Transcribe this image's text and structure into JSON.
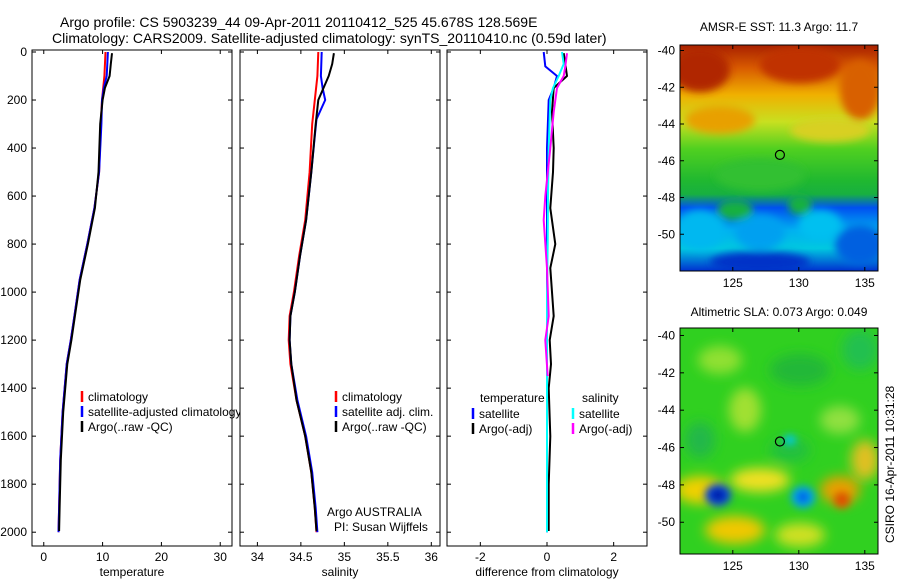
{
  "header": {
    "title_line1": "Argo profile: CS 5903239_44 09-Apr-2011 20110412_525 45.678S 128.569E",
    "title_line2": "Climatology: CARS2009. Satellite-adjusted climatology: synTS_20110410.nc (0.59d later)"
  },
  "credit": "CSIRO 16-Apr-2011 10:31:28",
  "chart_data": [
    {
      "type": "line",
      "id": "temperature",
      "xlabel": "temperature",
      "ylabel": "",
      "xlim": [
        -2,
        32
      ],
      "ylim": [
        2060,
        0
      ],
      "y_reversed": true,
      "xticks": [
        0,
        10,
        20,
        30
      ],
      "yticks": [
        0,
        200,
        400,
        600,
        800,
        1000,
        1200,
        1400,
        1600,
        1800,
        2000
      ],
      "legend": [
        "climatology",
        "satellite-adjusted climatology",
        "Argo(..raw -QC)"
      ],
      "series": [
        {
          "name": "climatology",
          "color": "#ff0000",
          "x": [
            10.5,
            10.3,
            10.1,
            9.9,
            9.7,
            9.4,
            8.6,
            7.4,
            6.1,
            5.2,
            4.6,
            3.9,
            3.2,
            2.8,
            2.6,
            2.5
          ],
          "y": [
            0,
            100,
            150,
            200,
            300,
            500,
            650,
            800,
            950,
            1100,
            1200,
            1300,
            1500,
            1700,
            1900,
            2000
          ]
        },
        {
          "name": "satellite-adjusted climatology",
          "color": "#0000ff",
          "x": [
            10.9,
            10.7,
            10.2,
            9.9,
            9.8,
            9.4,
            8.6,
            7.4,
            6.1,
            5.2,
            4.6,
            3.9,
            3.2,
            2.8,
            2.6,
            2.5
          ],
          "y": [
            0,
            100,
            150,
            200,
            300,
            500,
            650,
            800,
            950,
            1100,
            1200,
            1300,
            1500,
            1700,
            1900,
            2000
          ]
        },
        {
          "name": "Argo(..raw -QC)",
          "color": "#000000",
          "x": [
            11.6,
            11.4,
            11.2,
            10.4,
            10.0,
            9.6,
            9.3,
            8.7,
            7.5,
            6.2,
            5.3,
            4.7,
            4.0,
            3.3,
            2.9,
            2.7,
            2.6
          ],
          "y": [
            5,
            50,
            100,
            150,
            200,
            300,
            500,
            650,
            800,
            950,
            1100,
            1200,
            1300,
            1500,
            1700,
            1900,
            1995
          ]
        }
      ]
    },
    {
      "type": "line",
      "id": "salinity",
      "xlabel": "salinity",
      "ylabel": "",
      "xlim": [
        33.8,
        36.1
      ],
      "ylim": [
        2060,
        0
      ],
      "y_reversed": true,
      "xticks": [
        34,
        34.5,
        35,
        35.5,
        36
      ],
      "yticks": [
        0,
        200,
        400,
        600,
        800,
        1000,
        1200,
        1400,
        1600,
        1800,
        2000
      ],
      "legend": [
        "climatology",
        "satellite adj. clim.",
        "Argo(..raw -QC)"
      ],
      "annotation_line1": "Argo AUSTRALIA",
      "annotation_line2": "PI: Susan Wijffels",
      "series": [
        {
          "name": "climatology",
          "color": "#ff0000",
          "x": [
            34.7,
            34.69,
            34.66,
            34.63,
            34.6,
            34.55,
            34.48,
            34.42,
            34.37,
            34.36,
            34.38,
            34.45,
            34.55,
            34.62,
            34.66,
            34.68
          ],
          "y": [
            0,
            100,
            200,
            300,
            500,
            700,
            850,
            1000,
            1100,
            1200,
            1300,
            1450,
            1600,
            1750,
            1900,
            2000
          ]
        },
        {
          "name": "satellite adj. clim.",
          "color": "#0000ff",
          "x": [
            34.74,
            34.73,
            34.75,
            34.78,
            34.68,
            34.66,
            34.62,
            34.56,
            34.49,
            34.43,
            34.38,
            34.37,
            34.39,
            34.46,
            34.56,
            34.63,
            34.67,
            34.69
          ],
          "y": [
            0,
            100,
            150,
            200,
            280,
            350,
            500,
            700,
            850,
            1000,
            1100,
            1200,
            1300,
            1450,
            1600,
            1750,
            1900,
            2000
          ]
        },
        {
          "name": "Argo(..raw -QC)",
          "color": "#000000",
          "x": [
            34.88,
            34.86,
            34.82,
            34.7,
            34.67,
            34.62,
            34.56,
            34.49,
            34.43,
            34.38,
            34.37,
            34.39,
            34.45,
            34.55,
            34.62,
            34.66,
            34.68
          ],
          "y": [
            5,
            50,
            100,
            200,
            300,
            500,
            700,
            850,
            1000,
            1100,
            1200,
            1300,
            1450,
            1600,
            1750,
            1900,
            1995
          ]
        }
      ]
    },
    {
      "type": "line",
      "id": "difference",
      "xlabel": "difference from climatology",
      "ylabel": "",
      "xlim": [
        -3,
        3
      ],
      "ylim": [
        2060,
        0
      ],
      "y_reversed": true,
      "xticks": [
        -2,
        0,
        2
      ],
      "yticks": [
        0,
        200,
        400,
        600,
        800,
        1000,
        1200,
        1400,
        1600,
        1800,
        2000
      ],
      "legend_left_title": "temperature",
      "legend_right_title": "salinity",
      "legend_left": [
        "satellite",
        "Argo(-adj)"
      ],
      "legend_right": [
        "satellite",
        "Argo(-adj)"
      ],
      "series": [
        {
          "name": "temperature satellite",
          "color": "#0000ff",
          "x": [
            -0.1,
            -0.05,
            0.3,
            0.2,
            0.05,
            0.0,
            0.0,
            0.0,
            0.0,
            0.0,
            0.0,
            0.0
          ],
          "y": [
            0,
            60,
            100,
            150,
            200,
            400,
            600,
            800,
            1000,
            1400,
            1800,
            2000
          ]
        },
        {
          "name": "temperature Argo(-adj)",
          "color": "#000000",
          "x": [
            0.5,
            0.55,
            0.6,
            0.2,
            0.15,
            0.2,
            0.18,
            0.1,
            0.25,
            0.1,
            0.2,
            0.08,
            0.12,
            0.05,
            0.1,
            0.05,
            0.05
          ],
          "y": [
            5,
            50,
            100,
            150,
            250,
            400,
            500,
            650,
            800,
            900,
            1100,
            1200,
            1300,
            1400,
            1600,
            1800,
            1995
          ]
        },
        {
          "name": "salinity satellite",
          "color": "#00ffff",
          "x": [
            0.45,
            0.5,
            0.35,
            0.18,
            0.1,
            0.05,
            0.03,
            0.02,
            0.0,
            0.0,
            0.0,
            0.0
          ],
          "y": [
            0,
            50,
            100,
            150,
            200,
            400,
            600,
            800,
            1000,
            1400,
            1800,
            2000
          ]
        },
        {
          "name": "salinity Argo(-adj)",
          "color": "#ff00ff",
          "x": [
            0.6,
            0.55,
            0.5,
            0.3,
            0.2,
            0.1,
            -0.05,
            -0.1,
            0.0,
            0.05,
            -0.05,
            0.02
          ],
          "y": [
            5,
            60,
            100,
            150,
            250,
            400,
            600,
            700,
            900,
            1100,
            1200,
            1350
          ]
        }
      ]
    },
    {
      "type": "heatmap",
      "id": "sst",
      "title": "AMSR-E SST: 11.3 Argo: 11.7",
      "xlim": [
        121,
        136
      ],
      "ylim": [
        -52,
        -39.7
      ],
      "xticks": [
        125,
        130,
        135
      ],
      "yticks": [
        -40,
        -42,
        -44,
        -46,
        -48,
        -50
      ],
      "marker": {
        "lon": 128.569,
        "lat": -45.678
      }
    },
    {
      "type": "heatmap",
      "id": "sla",
      "title": "Altimetric SLA: 0.073 Argo: 0.049",
      "xlim": [
        121,
        136
      ],
      "ylim": [
        -51.7,
        -39.6
      ],
      "xticks": [
        125,
        130,
        135
      ],
      "yticks": [
        -40,
        -42,
        -44,
        -46,
        -48,
        -50
      ],
      "marker": {
        "lon": 128.569,
        "lat": -45.678
      }
    }
  ]
}
